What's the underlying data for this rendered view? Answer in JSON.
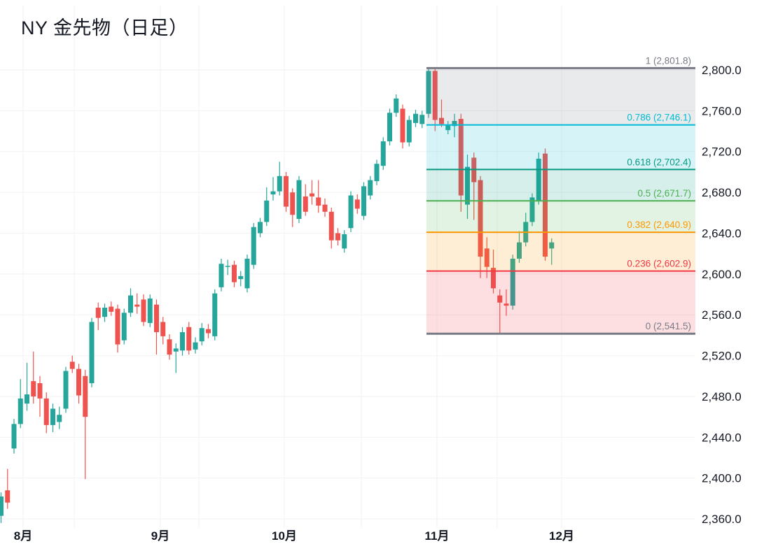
{
  "title": "NY 金先物（日足）",
  "colors": {
    "background": "#ffffff",
    "up_candle": "#26a69a",
    "down_candle": "#ef5350",
    "grid": "#f0f2f5",
    "axis_text": "#131722",
    "fib_gray": "#787b86",
    "fib_cyan": "#00bcd4",
    "fib_teal": "#089981",
    "fib_green": "#4caf50",
    "fib_orange": "#ff9800",
    "fib_red": "#f23645"
  },
  "chart_data": {
    "type": "candlestick",
    "title": "NY 金先物（日足）",
    "y_axis": {
      "side": "right",
      "min": 2360,
      "max": 2800,
      "tick_step": 40,
      "ticks": [
        {
          "label": "2,800.0",
          "value": 2800
        },
        {
          "label": "2,760.0",
          "value": 2760
        },
        {
          "label": "2,720.0",
          "value": 2720
        },
        {
          "label": "2,680.0",
          "value": 2680
        },
        {
          "label": "2,640.0",
          "value": 2640
        },
        {
          "label": "2,600.0",
          "value": 2600
        },
        {
          "label": "2,560.0",
          "value": 2560
        },
        {
          "label": "2,520.0",
          "value": 2520
        },
        {
          "label": "2,480.0",
          "value": 2480
        },
        {
          "label": "2,440.0",
          "value": 2440
        },
        {
          "label": "2,400.0",
          "value": 2400
        },
        {
          "label": "2,360.0",
          "value": 2360
        }
      ]
    },
    "x_axis": {
      "ticks": [
        {
          "label": "8月"
        },
        {
          "label": "9月"
        },
        {
          "label": "10月"
        },
        {
          "label": "11月"
        },
        {
          "label": "12月"
        }
      ]
    },
    "fibonacci_retracement": {
      "anchor_high": 2801.8,
      "anchor_low": 2541.5,
      "levels": [
        {
          "ratio": "1",
          "price": 2801.8,
          "label": "1 (2,801.8)",
          "color": "#787b86",
          "line_width": 3
        },
        {
          "ratio": "0.786",
          "price": 2746.1,
          "label": "0.786 (2,746.1)",
          "color": "#00bcd4",
          "line_width": 2
        },
        {
          "ratio": "0.618",
          "price": 2702.4,
          "label": "0.618 (2,702.4)",
          "color": "#089981",
          "line_width": 2
        },
        {
          "ratio": "0.5",
          "price": 2671.7,
          "label": "0.5 (2,671.7)",
          "color": "#4caf50",
          "line_width": 2
        },
        {
          "ratio": "0.382",
          "price": 2640.9,
          "label": "0.382 (2,640.9)",
          "color": "#ff9800",
          "line_width": 2
        },
        {
          "ratio": "0.236",
          "price": 2602.9,
          "label": "0.236 (2,602.9)",
          "color": "#f23645",
          "line_width": 2
        },
        {
          "ratio": "0",
          "price": 2541.5,
          "label": "0 (2,541.5)",
          "color": "#787b86",
          "line_width": 3
        }
      ],
      "band_opacity": 0.16
    },
    "candles_ohlc": [
      [
        2363,
        2386,
        2356,
        2382
      ],
      [
        2388,
        2409,
        2370,
        2376
      ],
      [
        2429,
        2458,
        2424,
        2453
      ],
      [
        2453,
        2497,
        2449,
        2478
      ],
      [
        2473,
        2513,
        2466,
        2482
      ],
      [
        2495,
        2524,
        2473,
        2480
      ],
      [
        2493,
        2500,
        2460,
        2478
      ],
      [
        2478,
        2484,
        2444,
        2452
      ],
      [
        2452,
        2473,
        2445,
        2468
      ],
      [
        2455,
        2470,
        2448,
        2462
      ],
      [
        2468,
        2509,
        2464,
        2505
      ],
      [
        2514,
        2520,
        2503,
        2507
      ],
      [
        2507,
        2512,
        2473,
        2481
      ],
      [
        2500,
        2506,
        2399,
        2460
      ],
      [
        2493,
        2557,
        2489,
        2553
      ],
      [
        2567,
        2572,
        2545,
        2557
      ],
      [
        2558,
        2571,
        2553,
        2567
      ],
      [
        2568,
        2573,
        2559,
        2563
      ],
      [
        2566,
        2570,
        2523,
        2531
      ],
      [
        2535,
        2566,
        2531,
        2562
      ],
      [
        2562,
        2586,
        2558,
        2579
      ],
      [
        2570,
        2581,
        2561,
        2568
      ],
      [
        2575,
        2580,
        2549,
        2553
      ],
      [
        2552,
        2580,
        2548,
        2576
      ],
      [
        2570,
        2575,
        2521,
        2543
      ],
      [
        2553,
        2558,
        2531,
        2539
      ],
      [
        2536,
        2541,
        2516,
        2521
      ],
      [
        2524,
        2532,
        2503,
        2527
      ],
      [
        2525,
        2548,
        2520,
        2543
      ],
      [
        2548,
        2553,
        2521,
        2525
      ],
      [
        2526,
        2538,
        2522,
        2533
      ],
      [
        2534,
        2552,
        2530,
        2547
      ],
      [
        2546,
        2551,
        2537,
        2542
      ],
      [
        2539,
        2585,
        2535,
        2581
      ],
      [
        2587,
        2615,
        2583,
        2610
      ],
      [
        2607,
        2614,
        2599,
        2608
      ],
      [
        2609,
        2613,
        2587,
        2592
      ],
      [
        2595,
        2603,
        2588,
        2598
      ],
      [
        2586,
        2619,
        2582,
        2615
      ],
      [
        2609,
        2650,
        2605,
        2646
      ],
      [
        2640,
        2655,
        2636,
        2651
      ],
      [
        2651,
        2685,
        2647,
        2672
      ],
      [
        2678,
        2695,
        2672,
        2681
      ],
      [
        2681,
        2710,
        2677,
        2696
      ],
      [
        2696,
        2700,
        2661,
        2666
      ],
      [
        2680,
        2684,
        2646,
        2658
      ],
      [
        2654,
        2696,
        2650,
        2692
      ],
      [
        2676,
        2688,
        2657,
        2661
      ],
      [
        2679,
        2692,
        2668,
        2676
      ],
      [
        2675,
        2692,
        2660,
        2667
      ],
      [
        2668,
        2674,
        2656,
        2661
      ],
      [
        2661,
        2665,
        2625,
        2633
      ],
      [
        2640,
        2645,
        2628,
        2633
      ],
      [
        2625,
        2643,
        2621,
        2639
      ],
      [
        2645,
        2681,
        2641,
        2677
      ],
      [
        2673,
        2678,
        2659,
        2664
      ],
      [
        2657,
        2690,
        2653,
        2686
      ],
      [
        2677,
        2696,
        2673,
        2692
      ],
      [
        2691,
        2712,
        2687,
        2708
      ],
      [
        2706,
        2734,
        2702,
        2730
      ],
      [
        2730,
        2762,
        2726,
        2758
      ],
      [
        2758,
        2776,
        2754,
        2772
      ],
      [
        2762,
        2766,
        2723,
        2729
      ],
      [
        2729,
        2755,
        2725,
        2751
      ],
      [
        2748,
        2761,
        2744,
        2757
      ],
      [
        2747,
        2760,
        2743,
        2756
      ],
      [
        2757,
        2802,
        2753,
        2799
      ],
      [
        2799,
        2801,
        2740,
        2751
      ],
      [
        2753,
        2771,
        2744,
        2747
      ],
      [
        2741,
        2750,
        2737,
        2746
      ],
      [
        2745,
        2757,
        2734,
        2750
      ],
      [
        2752,
        2757,
        2661,
        2677
      ],
      [
        2668,
        2717,
        2654,
        2705
      ],
      [
        2714,
        2719,
        2653,
        2690
      ],
      [
        2692,
        2696,
        2596,
        2617
      ],
      [
        2625,
        2636,
        2596,
        2607
      ],
      [
        2606,
        2624,
        2581,
        2586
      ],
      [
        2579,
        2585,
        2542,
        2572
      ],
      [
        2571,
        2585,
        2559,
        2569
      ],
      [
        2569,
        2619,
        2565,
        2615
      ],
      [
        2615,
        2642,
        2611,
        2631
      ],
      [
        2631,
        2660,
        2627,
        2651
      ],
      [
        2651,
        2679,
        2647,
        2675
      ],
      [
        2672,
        2719,
        2668,
        2713
      ],
      [
        2718,
        2723,
        2613,
        2617
      ],
      [
        2625,
        2635,
        2609,
        2631
      ]
    ]
  }
}
